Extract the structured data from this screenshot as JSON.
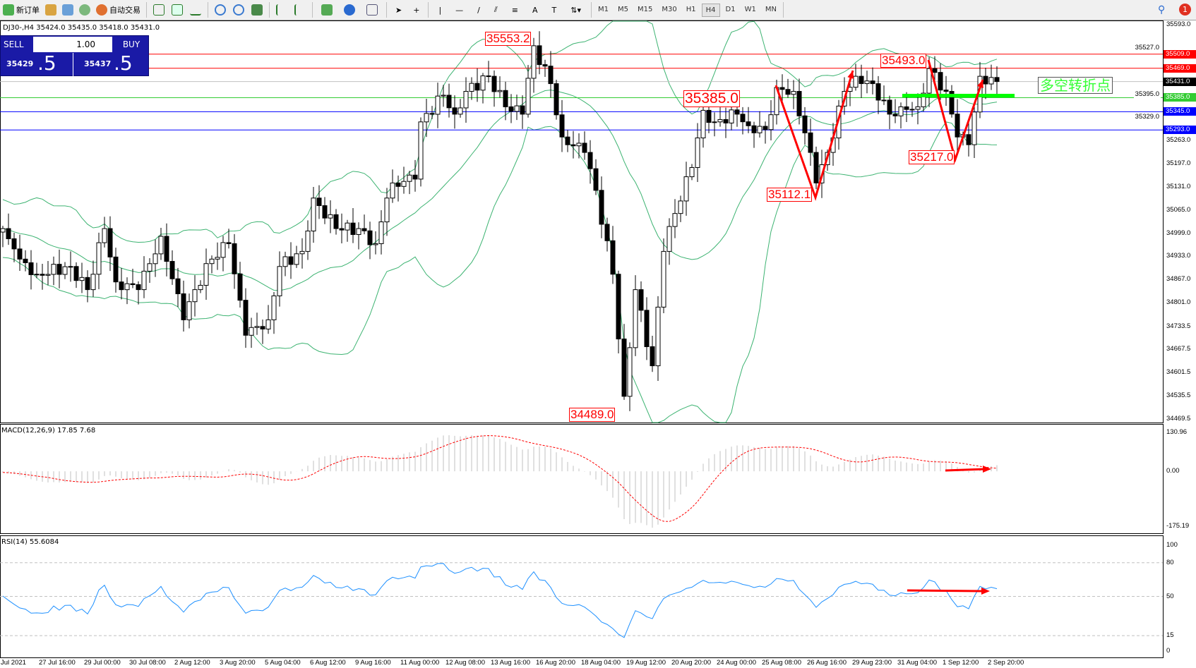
{
  "toolbar": {
    "new_order": "新订单",
    "auto_trading": "自动交易",
    "timeframes": [
      "M1",
      "M5",
      "M15",
      "M30",
      "H1",
      "H4",
      "D1",
      "W1",
      "MN"
    ],
    "active_timeframe": "H4",
    "notification_count": "1"
  },
  "chart": {
    "info": "DJ30-,H4  35424.0 35435.0 35418.0 35431.0",
    "symbol": "DJ30-",
    "timeframe": "H4"
  },
  "trade_panel": {
    "sell": "SELL",
    "buy": "BUY",
    "lot": "1.00",
    "bid_main": "35429",
    "bid_frac": ".5",
    "ask_main": "35437",
    "ask_frac": ".5"
  },
  "price_axis": [
    "35593.0",
    "35527.0",
    "35395.0",
    "35329.0",
    "35263.0",
    "35197.0",
    "35131.0",
    "35065.0",
    "34999.0",
    "34933.0",
    "34867.0",
    "34801.0",
    "34733.5",
    "34667.5",
    "34601.5",
    "34535.5",
    "34469.5"
  ],
  "levels": [
    {
      "price": "35509.0",
      "color": "#ff0000"
    },
    {
      "price": "35469.0",
      "color": "#ff0000"
    },
    {
      "price": "35431.0",
      "color": "#000000"
    },
    {
      "price": "35385.0",
      "color": "#33cc33"
    },
    {
      "price": "35345.0",
      "color": "#0000ff"
    },
    {
      "price": "35293.0",
      "color": "#0000ff"
    }
  ],
  "annotations": {
    "high1": "35553.2",
    "low1": "34489.0",
    "pivot": "35385.0",
    "high2": "35493.0",
    "low2": "35112.1",
    "low3": "35217.0",
    "pivot_text": "多空转折点"
  },
  "price_path": [
    [
      0,
      35012
    ],
    [
      3,
      34925
    ],
    [
      6,
      34882
    ],
    [
      12,
      34904
    ],
    [
      15,
      34838
    ],
    [
      18,
      35012
    ],
    [
      20,
      34860
    ],
    [
      24,
      34838
    ],
    [
      28,
      34990
    ],
    [
      32,
      34752
    ],
    [
      34,
      34838
    ],
    [
      37,
      34925
    ],
    [
      40,
      34969
    ],
    [
      43,
      34708
    ],
    [
      47,
      34752
    ],
    [
      49,
      34904
    ],
    [
      53,
      34947
    ],
    [
      55,
      35099
    ],
    [
      59,
      35012
    ],
    [
      63,
      35012
    ],
    [
      66,
      34969
    ],
    [
      68,
      35099
    ],
    [
      69,
      35142
    ],
    [
      73,
      35153
    ],
    [
      74,
      35316
    ],
    [
      78,
      35392
    ],
    [
      80,
      35338
    ],
    [
      82,
      35403
    ],
    [
      86,
      35446
    ],
    [
      89,
      35359
    ],
    [
      92,
      35338
    ],
    [
      94,
      35533
    ],
    [
      97,
      35425
    ],
    [
      99,
      35273
    ],
    [
      103,
      35229
    ],
    [
      105,
      35121
    ],
    [
      108,
      34882
    ],
    [
      110,
      34534
    ],
    [
      112,
      34838
    ],
    [
      115,
      34621
    ],
    [
      117,
      34947
    ],
    [
      119,
      35055
    ],
    [
      122,
      35186
    ],
    [
      124,
      35349
    ],
    [
      126,
      35316
    ],
    [
      130,
      35338
    ],
    [
      132,
      35305
    ],
    [
      135,
      35294
    ],
    [
      137,
      35414
    ],
    [
      140,
      35403
    ],
    [
      143,
      35229
    ],
    [
      144,
      35142
    ],
    [
      146,
      35229
    ],
    [
      149,
      35403
    ],
    [
      151,
      35446
    ],
    [
      154,
      35425
    ],
    [
      157,
      35338
    ],
    [
      159,
      35359
    ],
    [
      162,
      35359
    ],
    [
      164,
      35468
    ],
    [
      167,
      35403
    ],
    [
      169,
      35273
    ],
    [
      171,
      35251
    ],
    [
      173,
      35446
    ],
    [
      176,
      35431
    ]
  ],
  "macd": {
    "label": "MACD(12,26,9) 17.85 7.68",
    "axis": [
      "130.96",
      "0.00",
      "-175.19"
    ],
    "max": 130.96,
    "min": -175.19
  },
  "rsi": {
    "label": "RSI(14) 55.6084",
    "axis": [
      "100",
      "80",
      "50",
      "15",
      "0"
    ]
  },
  "time_axis": [
    "Jul 2021",
    "27 Jul 16:00",
    "29 Jul 00:00",
    "30 Jul 08:00",
    "2 Aug 12:00",
    "3 Aug 20:00",
    "5 Aug 04:00",
    "6 Aug 12:00",
    "9 Aug 16:00",
    "11 Aug 00:00",
    "12 Aug 08:00",
    "13 Aug 16:00",
    "16 Aug 20:00",
    "18 Aug 04:00",
    "19 Aug 12:00",
    "20 Aug 20:00",
    "24 Aug 00:00",
    "25 Aug 08:00",
    "26 Aug 16:00",
    "29 Aug 23:00",
    "31 Aug 04:00",
    "1 Sep 12:00",
    "2 Sep 20:00"
  ],
  "colors": {
    "bands": "#3cb371",
    "macd_signal": "#ff0000",
    "macd_hist": "#c0c0c0",
    "rsi": "#1e90ff",
    "trade_panel": "#1a1aa6",
    "pivot_bar": "#00ff00"
  }
}
